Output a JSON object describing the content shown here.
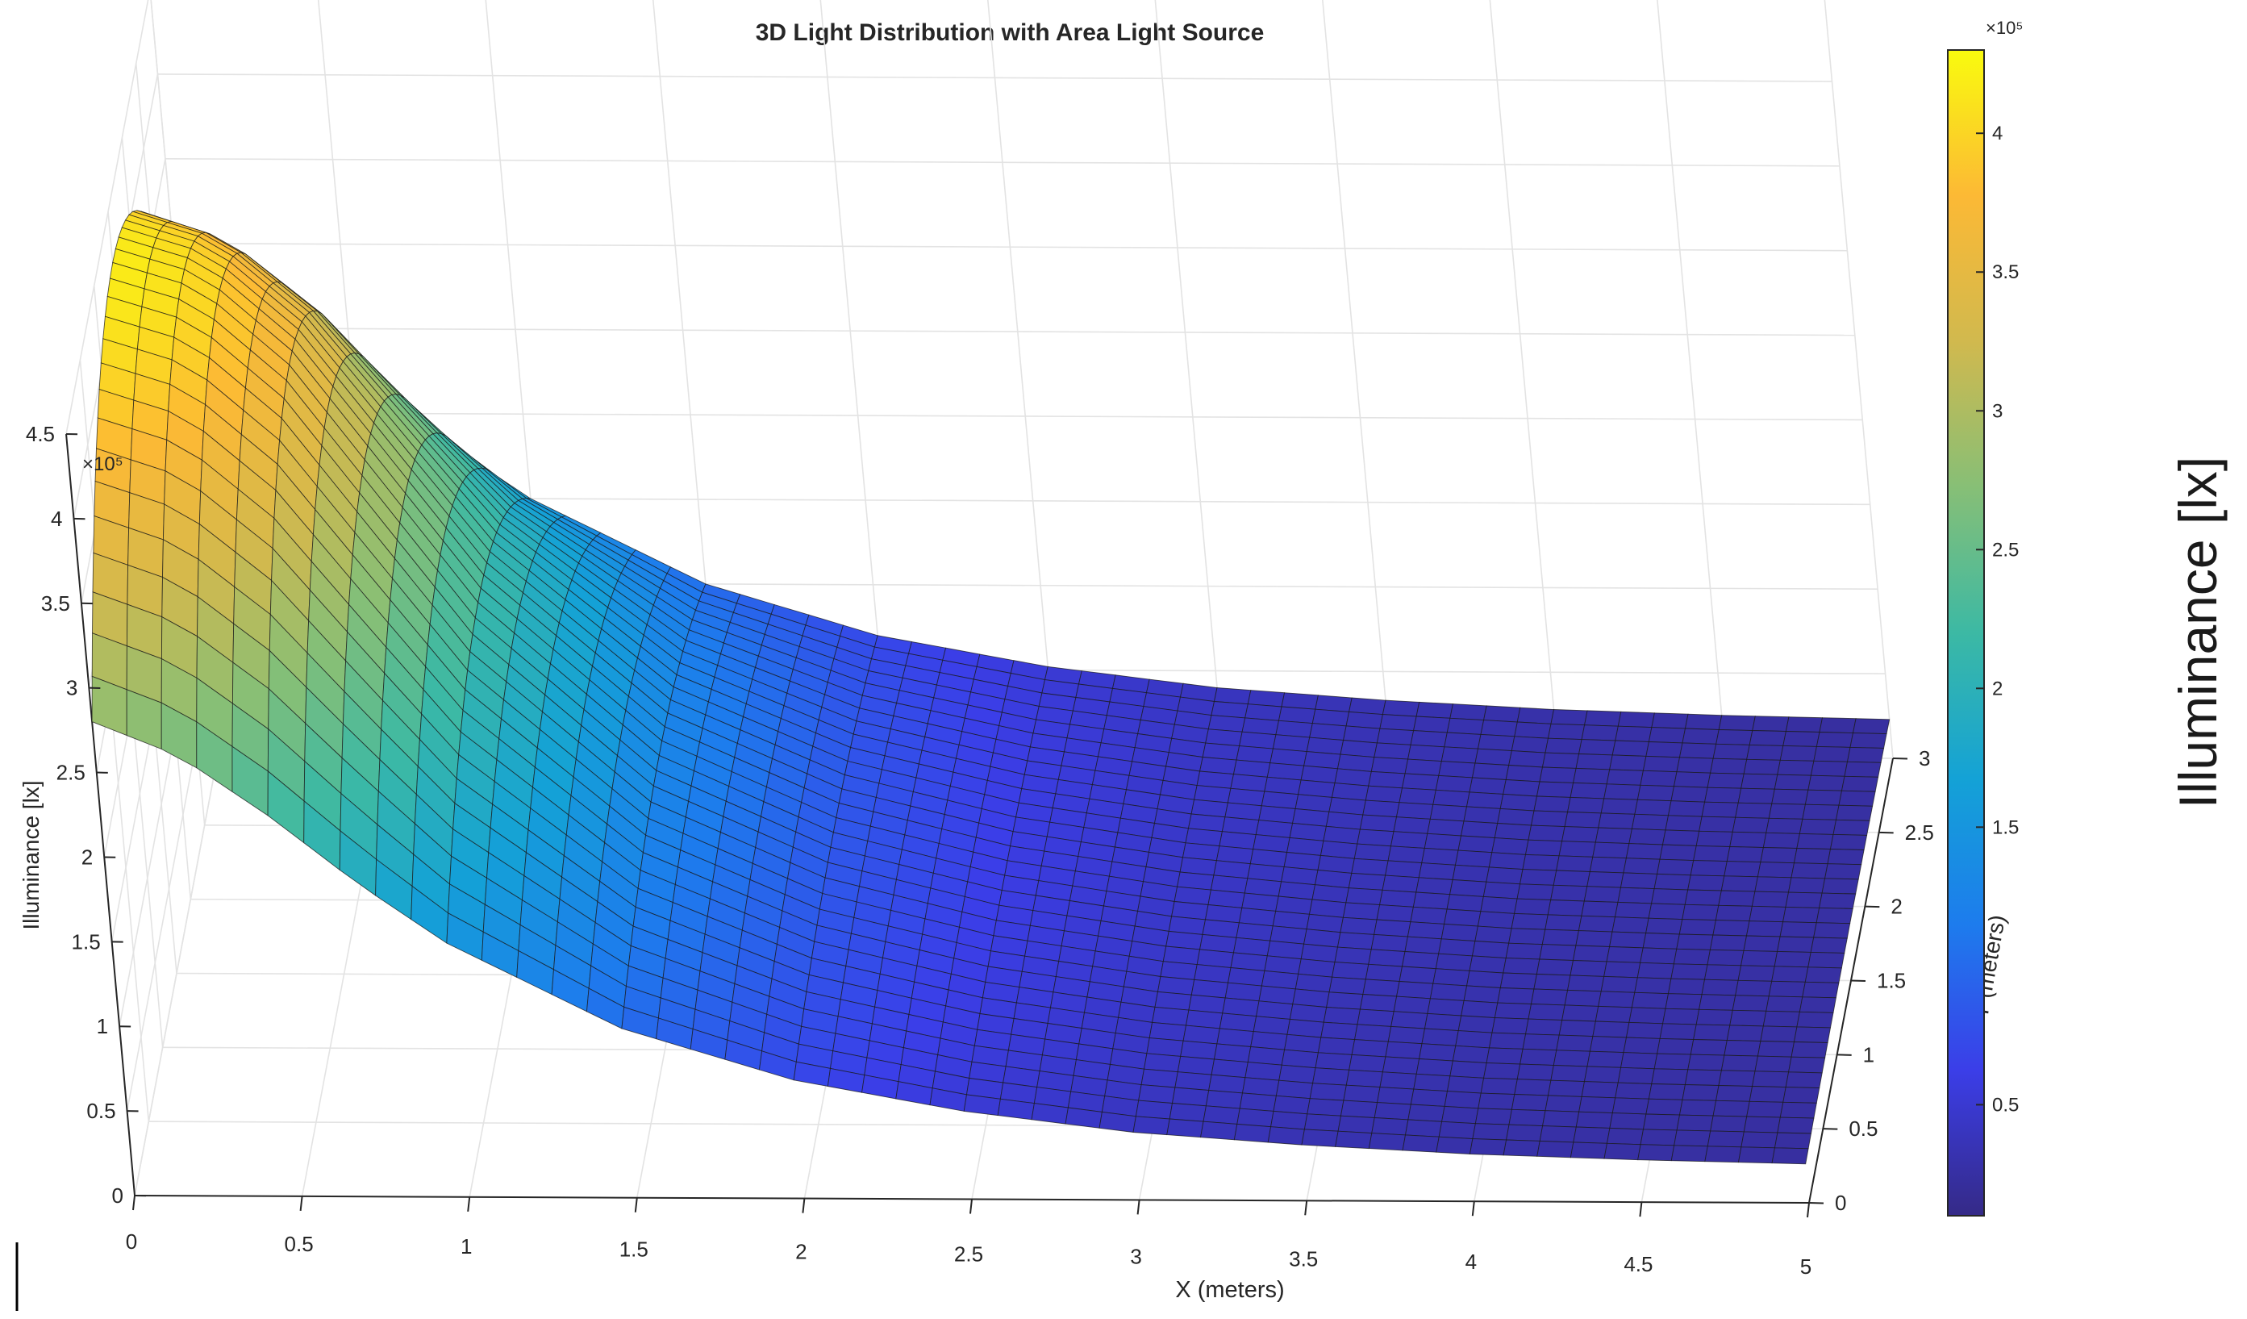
{
  "chart_data": {
    "type": "surface",
    "title": "3D Light Distribution with Area Light Source",
    "xlabel": "X (meters)",
    "ylabel": "Y (meters)",
    "zlabel": "Illuminance [lx]",
    "z_exponent": "×10⁵",
    "xlim": [
      0,
      5
    ],
    "ylim": [
      0,
      3
    ],
    "zlim": [
      0,
      450000
    ],
    "x_ticks": [
      "0",
      "0.5",
      "1",
      "1.5",
      "2",
      "2.5",
      "3",
      "3.5",
      "4",
      "4.5",
      "5"
    ],
    "y_ticks": [
      "0",
      "0.5",
      "1",
      "1.5",
      "2",
      "2.5",
      "3"
    ],
    "z_ticks": [
      "0",
      "0.5",
      "1",
      "1.5",
      "2",
      "2.5",
      "3",
      "3.5",
      "4",
      "4.5"
    ],
    "grid": true,
    "colormap": "parula",
    "colorbar": {
      "label": "Illuminance [lx]",
      "exponent": "×10⁵",
      "range": [
        10000,
        430000
      ],
      "ticks": [
        "0.5",
        "1.5",
        "2",
        "2.5",
        "3",
        "3.5",
        "4"
      ],
      "tick_values": [
        50000,
        150000,
        200000,
        250000,
        300000,
        350000,
        400000
      ],
      "colors": [
        "#352a87",
        "#3b3ee8",
        "#1d7ced",
        "#14a2d6",
        "#3cb9a4",
        "#87bf76",
        "#d1b94e",
        "#fcb935",
        "#f9fb0e"
      ]
    },
    "surface_profile": {
      "note_x": [
        0,
        0.25,
        0.5,
        0.75,
        1,
        1.5,
        2,
        2.5,
        3,
        3.5,
        4,
        4.5,
        5
      ],
      "peak_illuminance_at_y": [
        420000,
        405000,
        360000,
        290000,
        220000,
        130000,
        85000,
        60000,
        45000,
        36000,
        30000,
        27000,
        25000
      ],
      "edge_illuminance_y0": [
        280000,
        260000,
        225000,
        185000,
        150000,
        100000,
        70000,
        52000,
        40000,
        33000,
        28000,
        25000,
        23000
      ]
    }
  }
}
